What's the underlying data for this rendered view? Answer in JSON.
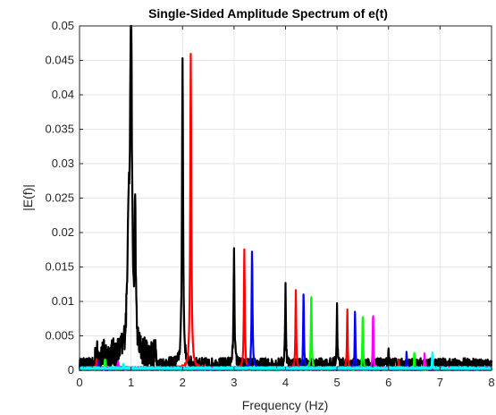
{
  "chart_data": {
    "type": "line",
    "title": "Single-Sided Amplitude Spectrum of e(t)",
    "xlabel": "Frequency (Hz)",
    "ylabel": "|E(f)|",
    "xlim": [
      0,
      8
    ],
    "ylim": [
      0,
      0.05
    ],
    "x_ticks": [
      0,
      1,
      2,
      3,
      4,
      5,
      6,
      7,
      8
    ],
    "x_tick_labels": [
      "0",
      "1",
      "2",
      "3",
      "4",
      "5",
      "6",
      "7",
      "8"
    ],
    "y_ticks": [
      0,
      0.005,
      0.01,
      0.015,
      0.02,
      0.025,
      0.03,
      0.035,
      0.04,
      0.045,
      0.05
    ],
    "y_tick_labels": [
      "0",
      "0.005",
      "0.01",
      "0.015",
      "0.02",
      "0.025",
      "0.03",
      "0.035",
      "0.04",
      "0.045",
      "0.05"
    ],
    "grid": true,
    "noise_floor": 0.0008,
    "series": [
      {
        "color": "#000000",
        "peaks": [
          {
            "x": 1.0,
            "y": 0.05,
            "w": 0.05
          },
          {
            "x": 0.95,
            "y": 0.0175,
            "w": 0.06
          },
          {
            "x": 1.08,
            "y": 0.0205,
            "w": 0.03
          },
          {
            "x": 2.0,
            "y": 0.045,
            "w": 0.03
          },
          {
            "x": 3.0,
            "y": 0.0172,
            "w": 0.025
          },
          {
            "x": 4.0,
            "y": 0.0117,
            "w": 0.022
          },
          {
            "x": 5.0,
            "y": 0.0084,
            "w": 0.02
          },
          {
            "x": 6.0,
            "y": 0.0016,
            "w": 0.015
          }
        ]
      },
      {
        "color": "#ff0000",
        "peaks": [
          {
            "x": 0.33,
            "y": 0.0012,
            "w": 0.02
          },
          {
            "x": 2.16,
            "y": 0.0455,
            "w": 0.03
          },
          {
            "x": 3.2,
            "y": 0.0172,
            "w": 0.025
          },
          {
            "x": 4.2,
            "y": 0.0115,
            "w": 0.022
          },
          {
            "x": 5.2,
            "y": 0.0084,
            "w": 0.02
          },
          {
            "x": 6.2,
            "y": 0.0015,
            "w": 0.015
          }
        ]
      },
      {
        "color": "#0000ff",
        "peaks": [
          {
            "x": 0.37,
            "y": 0.001,
            "w": 0.02
          },
          {
            "x": 3.35,
            "y": 0.0172,
            "w": 0.025
          },
          {
            "x": 4.35,
            "y": 0.0112,
            "w": 0.022
          },
          {
            "x": 5.35,
            "y": 0.0084,
            "w": 0.02
          },
          {
            "x": 6.35,
            "y": 0.0025,
            "w": 0.015
          }
        ]
      },
      {
        "color": "#00ff00",
        "peaks": [
          {
            "x": 0.5,
            "y": 0.0015,
            "w": 0.02
          },
          {
            "x": 4.5,
            "y": 0.0112,
            "w": 0.022
          },
          {
            "x": 5.5,
            "y": 0.0084,
            "w": 0.02
          },
          {
            "x": 6.5,
            "y": 0.0025,
            "w": 0.015
          }
        ]
      },
      {
        "color": "#ff00ff",
        "peaks": [
          {
            "x": 0.75,
            "y": 0.0012,
            "w": 0.02
          },
          {
            "x": 5.7,
            "y": 0.0084,
            "w": 0.02
          },
          {
            "x": 6.7,
            "y": 0.0025,
            "w": 0.015
          }
        ]
      },
      {
        "color": "#00ffff",
        "peaks": [
          {
            "x": 0.85,
            "y": 0.0008,
            "w": 0.02
          },
          {
            "x": 6.85,
            "y": 0.0027,
            "w": 0.015
          }
        ]
      }
    ]
  }
}
